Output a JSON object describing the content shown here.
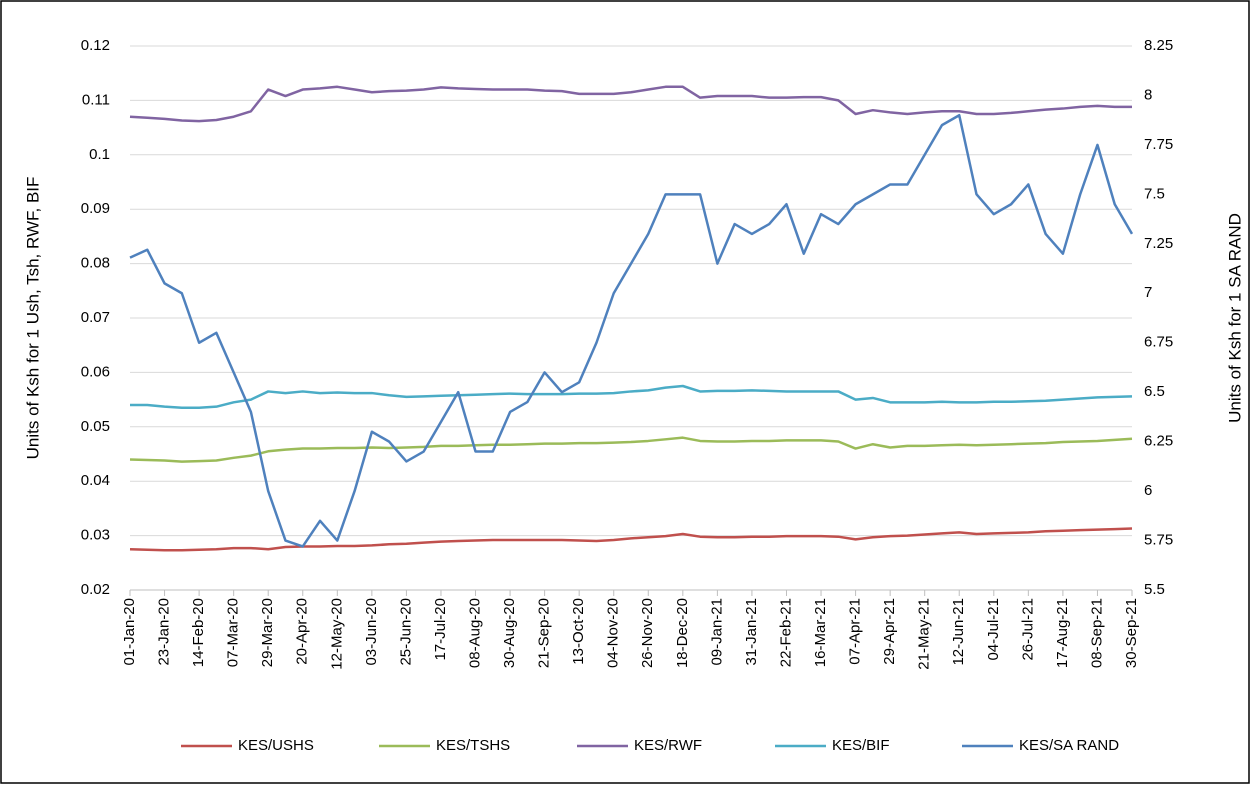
{
  "chart_data": {
    "type": "line",
    "y_label": "Units of Ksh for 1 Ush, Tsh, RWF, BIF",
    "y2_label": "Units of Ksh for 1 SA RAND",
    "x": [
      "01-Jan-20",
      "12-Jan-20",
      "23-Jan-20",
      "03-Feb-20",
      "14-Feb-20",
      "25-Feb-20",
      "07-Mar-20",
      "18-Mar-20",
      "29-Mar-20",
      "09-Apr-20",
      "20-Apr-20",
      "01-May-20",
      "12-May-20",
      "23-May-20",
      "03-Jun-20",
      "14-Jun-20",
      "25-Jun-20",
      "06-Jul-20",
      "17-Jul-20",
      "28-Jul-20",
      "08-Aug-20",
      "19-Aug-20",
      "30-Aug-20",
      "10-Sep-20",
      "21-Sep-20",
      "02-Oct-20",
      "13-Oct-20",
      "24-Oct-20",
      "04-Nov-20",
      "15-Nov-20",
      "26-Nov-20",
      "07-Dec-20",
      "18-Dec-20",
      "29-Dec-20",
      "09-Jan-21",
      "20-Jan-21",
      "31-Jan-21",
      "11-Feb-21",
      "22-Feb-21",
      "05-Mar-21",
      "16-Mar-21",
      "27-Mar-21",
      "07-Apr-21",
      "18-Apr-21",
      "29-Apr-21",
      "10-May-21",
      "21-May-21",
      "01-Jun-21",
      "12-Jun-21",
      "23-Jun-21",
      "04-Jul-21",
      "15-Jul-21",
      "26-Jul-21",
      "06-Aug-21",
      "17-Aug-21",
      "28-Aug-21",
      "08-Sep-21",
      "19-Sep-21",
      "30-Sep-21"
    ],
    "xlim": [
      "01-Jan-20",
      "30-Sep-21"
    ],
    "xticks": [
      "01-Jan-20",
      "23-Jan-20",
      "14-Feb-20",
      "07-Mar-20",
      "29-Mar-20",
      "20-Apr-20",
      "12-May-20",
      "03-Jun-20",
      "25-Jun-20",
      "17-Jul-20",
      "08-Aug-20",
      "30-Aug-20",
      "21-Sep-20",
      "13-Oct-20",
      "04-Nov-20",
      "26-Nov-20",
      "18-Dec-20",
      "09-Jan-21",
      "31-Jan-21",
      "22-Feb-21",
      "16-Mar-21",
      "07-Apr-21",
      "29-Apr-21",
      "21-May-21",
      "12-Jun-21",
      "04-Jul-21",
      "26-Jul-21",
      "17-Aug-21",
      "08-Sep-21",
      "30-Sep-21"
    ],
    "ylim": [
      0.02,
      0.12
    ],
    "yticks": [
      0.02,
      0.03,
      0.04,
      0.05,
      0.06,
      0.07,
      0.08,
      0.09,
      0.1,
      0.11,
      0.12
    ],
    "y2lim": [
      5.5,
      8.25
    ],
    "y2ticks": [
      5.5,
      5.75,
      6,
      6.25,
      6.5,
      6.75,
      7,
      7.25,
      7.5,
      7.75,
      8,
      8.25
    ],
    "grid": true,
    "legend": "bottom",
    "series": [
      {
        "name": "KES/USHS",
        "color": "#c0504d",
        "values": [
          0.0275,
          0.0274,
          0.0273,
          0.0273,
          0.0274,
          0.0275,
          0.0277,
          0.0277,
          0.0275,
          0.0279,
          0.028,
          0.028,
          0.0281,
          0.0281,
          0.0282,
          0.0284,
          0.0285,
          0.0287,
          0.0289,
          0.029,
          0.0291,
          0.0292,
          0.0292,
          0.0292,
          0.0292,
          0.0292,
          0.0291,
          0.029,
          0.0292,
          0.0295,
          0.0297,
          0.0299,
          0.0303,
          0.0298,
          0.0297,
          0.0297,
          0.0298,
          0.0298,
          0.0299,
          0.0299,
          0.0299,
          0.0298,
          0.0293,
          0.0297,
          0.0299,
          0.03,
          0.0302,
          0.0304,
          0.0306,
          0.0303,
          0.0304,
          0.0305,
          0.0306,
          0.0308,
          0.0309,
          0.031,
          0.0311,
          0.0312,
          0.0313
        ]
      },
      {
        "name": "KES/TSHS",
        "color": "#9bbb59",
        "values": [
          0.044,
          0.0439,
          0.0438,
          0.0436,
          0.0437,
          0.0438,
          0.0443,
          0.0447,
          0.0455,
          0.0458,
          0.046,
          0.046,
          0.0461,
          0.0461,
          0.0462,
          0.0461,
          0.0462,
          0.0463,
          0.0465,
          0.0465,
          0.0466,
          0.0467,
          0.0467,
          0.0468,
          0.0469,
          0.0469,
          0.047,
          0.047,
          0.0471,
          0.0472,
          0.0474,
          0.0477,
          0.048,
          0.0474,
          0.0473,
          0.0473,
          0.0474,
          0.0474,
          0.0475,
          0.0475,
          0.0475,
          0.0473,
          0.046,
          0.0468,
          0.0462,
          0.0465,
          0.0465,
          0.0466,
          0.0467,
          0.0466,
          0.0467,
          0.0468,
          0.0469,
          0.047,
          0.0472,
          0.0473,
          0.0474,
          0.0476,
          0.0478
        ]
      },
      {
        "name": "KES/RWF",
        "color": "#8064a2",
        "values": [
          0.107,
          0.1068,
          0.1066,
          0.1063,
          0.1062,
          0.1064,
          0.107,
          0.108,
          0.112,
          0.1108,
          0.112,
          0.1122,
          0.1125,
          0.112,
          0.1115,
          0.1117,
          0.1118,
          0.112,
          0.1124,
          0.1122,
          0.1121,
          0.112,
          0.112,
          0.112,
          0.1118,
          0.1117,
          0.1112,
          0.1112,
          0.1112,
          0.1115,
          0.112,
          0.1125,
          0.1125,
          0.1105,
          0.1108,
          0.1108,
          0.1108,
          0.1105,
          0.1105,
          0.1106,
          0.1106,
          0.11,
          0.1075,
          0.1082,
          0.1078,
          0.1075,
          0.1078,
          0.108,
          0.108,
          0.1075,
          0.1075,
          0.1077,
          0.108,
          0.1083,
          0.1085,
          0.1088,
          0.109,
          0.1088,
          0.1088
        ]
      },
      {
        "name": "KES/BIF",
        "color": "#4bacc6",
        "values": [
          0.054,
          0.054,
          0.0537,
          0.0535,
          0.0535,
          0.0537,
          0.0545,
          0.055,
          0.0565,
          0.0562,
          0.0565,
          0.0562,
          0.0563,
          0.0562,
          0.0562,
          0.0558,
          0.0555,
          0.0556,
          0.0557,
          0.0558,
          0.0559,
          0.056,
          0.0561,
          0.056,
          0.056,
          0.056,
          0.0561,
          0.0561,
          0.0562,
          0.0565,
          0.0567,
          0.0572,
          0.0575,
          0.0565,
          0.0566,
          0.0566,
          0.0567,
          0.0566,
          0.0565,
          0.0565,
          0.0565,
          0.0565,
          0.055,
          0.0553,
          0.0545,
          0.0545,
          0.0545,
          0.0546,
          0.0545,
          0.0545,
          0.0546,
          0.0546,
          0.0547,
          0.0548,
          0.055,
          0.0552,
          0.0554,
          0.0555,
          0.0556
        ]
      },
      {
        "name": "KES/SA RAND",
        "color": "#4f81bd",
        "axis": "y2",
        "values": [
          7.18,
          7.22,
          7.05,
          7.0,
          6.75,
          6.8,
          6.6,
          6.4,
          6.0,
          5.75,
          5.72,
          5.85,
          5.75,
          6.0,
          6.3,
          6.25,
          6.15,
          6.2,
          6.35,
          6.5,
          6.2,
          6.2,
          6.4,
          6.45,
          6.6,
          6.5,
          6.55,
          6.75,
          7.0,
          7.15,
          7.3,
          7.5,
          7.5,
          7.5,
          7.15,
          7.35,
          7.3,
          7.35,
          7.45,
          7.2,
          7.4,
          7.35,
          7.45,
          7.5,
          7.55,
          7.55,
          7.7,
          7.85,
          7.9,
          7.5,
          7.4,
          7.45,
          7.55,
          7.3,
          7.2,
          7.5,
          7.75,
          7.45,
          7.3
        ]
      }
    ]
  }
}
